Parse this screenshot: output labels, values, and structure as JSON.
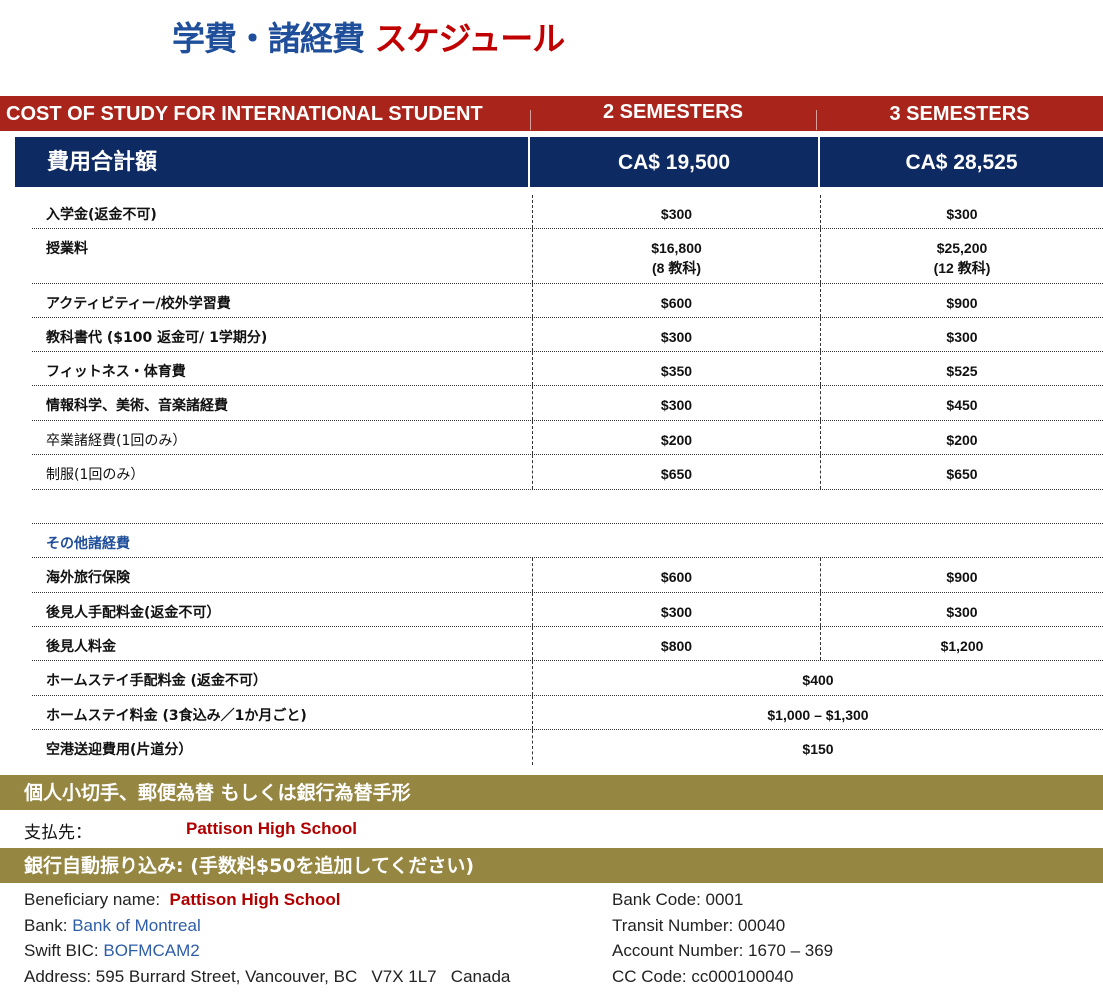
{
  "title": {
    "part1": "学費・諸経費",
    "part2": "スケジュール"
  },
  "header": {
    "heading": "COST OF STUDY FOR INTERNATIONAL STUDENT",
    "col1": "2 SEMESTERS",
    "col2": "3 SEMESTERS"
  },
  "total": {
    "label": "費用合計額",
    "col1": "CA$ 19,500",
    "col2": "CA$ 28,525"
  },
  "fees": [
    {
      "label": "入学金(返金不可)",
      "col1": "$300",
      "col2": "$300"
    },
    {
      "label": "授業料",
      "col1": "$16,800",
      "col1_note": "(8 教科)",
      "col2": "$25,200",
      "col2_note": "(12 教科)"
    },
    {
      "label": "アクティビティー/校外学習費",
      "col1": "$600",
      "col2": "$900"
    },
    {
      "label": "教科書代 ($100 返金可/ 1学期分)",
      "col1": "$300",
      "col2": "$300"
    },
    {
      "label": "フィットネス・体育費",
      "col1": "$350",
      "col2": "$525"
    },
    {
      "label": "情報科学、美術、音楽諸経費",
      "col1": "$300",
      "col2": "$450"
    },
    {
      "label": "卒業諸経費(1回のみ）",
      "col1": "$200",
      "col2": "$200"
    },
    {
      "label": "制服(1回のみ）",
      "col1": "$650",
      "col2": "$650"
    }
  ],
  "other": {
    "heading": "その他諸経費",
    "items": [
      {
        "label": "海外旅行保険",
        "col1": "$600",
        "col2": "$900"
      },
      {
        "label": "後見人手配料金(返金不可）",
        "col1": "$300",
        "col2": "$300"
      },
      {
        "label": "後見人料金",
        "col1": "$800",
        "col2": "$1,200"
      },
      {
        "label": "ホームステイ手配料金 (返金不可）",
        "value": "$400"
      },
      {
        "label": "ホームステイ料金 (3食込み／1か月ごと)",
        "value": "$1,000 – $1,300"
      },
      {
        "label": "空港送迎費用(片道分）",
        "value": "$150"
      }
    ]
  },
  "payment": {
    "check_heading": "個人小切手、郵便為替 もしくは銀行為替手形",
    "payto_label": "支払先：",
    "payto_name": "Pattison High School",
    "wire_heading": "銀行自動振り込み: (手数料$50を追加してください)",
    "beneficiary_label": "Beneficiary name:",
    "beneficiary": "Pattison High School",
    "bank_label": "Bank:",
    "bank": "Bank of Montreal",
    "swift_label": "Swift BIC:",
    "swift": "BOFMCAM2",
    "address": "Address: 595 Burrard Street, Vancouver, BC   V7X 1L7   Canada",
    "bank_code": "Bank Code: 0001",
    "transit": "Transit Number: 00040",
    "account": "Account Number: 1670 – 369",
    "cc_code": "CC Code: cc000100040"
  },
  "colors": {
    "title_blue": "#1f4e9a",
    "title_red": "#c00000",
    "header_red": "#a9241a",
    "navy": "#0e2a63",
    "gold": "#958641"
  }
}
